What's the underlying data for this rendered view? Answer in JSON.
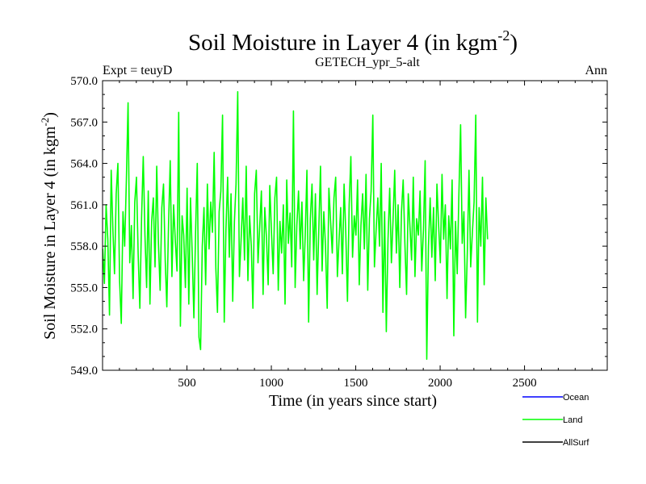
{
  "chart_data": {
    "type": "line",
    "title_main": "Soil Moisture in Layer 4 (in kgm",
    "title_sup": "-2",
    "title_close": ")",
    "subtitle": "GETECH_ypr_5-alt",
    "left_annotation": "Expt = teuyD",
    "right_annotation": "Ann",
    "xlabel": "Time (in years since start)",
    "ylabel_main": "Soil Moisture in Layer 4 (in kgm",
    "ylabel_sup": "-2",
    "ylabel_close": ")",
    "xlim": [
      0,
      2990
    ],
    "ylim": [
      549.0,
      570.0
    ],
    "x_ticks": [
      500,
      1000,
      1500,
      2000,
      2500
    ],
    "x_tick_labels": [
      "500",
      "1000",
      "1500",
      "2000",
      "2500"
    ],
    "y_ticks": [
      549.0,
      552.0,
      555.0,
      558.0,
      561.0,
      564.0,
      567.0,
      570.0
    ],
    "y_tick_labels": [
      "549.0",
      "552.0",
      "555.0",
      "558.0",
      "561.0",
      "564.0",
      "567.0",
      "570.0"
    ],
    "grid": false,
    "legend": {
      "placement": "bottom-right",
      "entries": [
        {
          "name": "Ocean",
          "color": "#0000ff"
        },
        {
          "name": "Land",
          "color": "#00ff00"
        },
        {
          "name": "AllSurf",
          "color": "#000000"
        }
      ]
    },
    "series": [
      {
        "name": "Land",
        "color": "#00ff00",
        "x_start": 1,
        "x_step": 10,
        "values": [
          557.8,
          555.3,
          561.0,
          558.5,
          553.0,
          563.5,
          559.2,
          556.0,
          561.8,
          564.0,
          555.5,
          552.4,
          560.5,
          558.0,
          562.8,
          568.4,
          556.8,
          559.5,
          554.2,
          561.2,
          563.0,
          557.4,
          553.5,
          560.0,
          564.5,
          558.8,
          555.0,
          562.0,
          553.8,
          559.8,
          561.5,
          556.5,
          563.8,
          558.2,
          554.8,
          560.8,
          562.5,
          557.0,
          553.6,
          559.5,
          564.2,
          555.8,
          561.0,
          558.4,
          556.2,
          567.7,
          552.2,
          560.2,
          558.8,
          555.0,
          562.2,
          553.8,
          561.5,
          557.5,
          552.8,
          559.0,
          564.0,
          551.4,
          550.5,
          558.0,
          560.8,
          555.2,
          562.5,
          557.8,
          561.2,
          559.0,
          564.8,
          556.4,
          553.2,
          560.5,
          562.0,
          567.5,
          552.5,
          559.2,
          563.0,
          557.2,
          561.8,
          554.0,
          559.8,
          562.5,
          569.2,
          555.8,
          558.5,
          561.5,
          557.0,
          563.8,
          555.5,
          560.2,
          558.0,
          553.5,
          561.8,
          563.5,
          556.8,
          559.4,
          562.0,
          554.5,
          560.8,
          558.6,
          555.2,
          562.4,
          559.0,
          556.0,
          561.5,
          563.0,
          554.8,
          559.8,
          557.5,
          561.0,
          553.8,
          562.8,
          558.2,
          560.4,
          556.5,
          567.8,
          555.0,
          559.5,
          562.0,
          557.8,
          561.2,
          555.5,
          558.8,
          563.5,
          552.5,
          560.0,
          562.5,
          557.0,
          561.8,
          554.5,
          559.2,
          563.8,
          556.2,
          560.5,
          558.0,
          553.5,
          562.2,
          559.8,
          557.5,
          561.5,
          563.0,
          555.8,
          558.5,
          560.8,
          556.0,
          562.5,
          559.0,
          554.0,
          561.0,
          564.5,
          557.2,
          560.2,
          558.8,
          562.8,
          555.2,
          559.5,
          561.8,
          557.8,
          563.2,
          554.8,
          560.0,
          562.0,
          567.5,
          556.5,
          559.2,
          561.5,
          558.0,
          564.0,
          553.2,
          560.5,
          551.8,
          558.5,
          562.2,
          556.8,
          559.8,
          563.5,
          557.5,
          561.0,
          555.0,
          560.5,
          562.8,
          558.2,
          554.5,
          561.8,
          559.5,
          557.0,
          563.0,
          555.8,
          560.0,
          558.8,
          562.0,
          556.2,
          559.2,
          564.2,
          549.8,
          558.0,
          561.5,
          557.2,
          560.8,
          555.5,
          562.5,
          559.5,
          556.8,
          563.2,
          558.5,
          561.0,
          554.2,
          560.2,
          557.8,
          562.8,
          551.5,
          559.8,
          556.0,
          561.8,
          566.8,
          558.2,
          560.5,
          552.8,
          557.5,
          563.5,
          556.5,
          559.0,
          561.2,
          567.5,
          552.5,
          560.8,
          558.0,
          563.0,
          555.2,
          561.5,
          558.5
        ]
      }
    ]
  }
}
